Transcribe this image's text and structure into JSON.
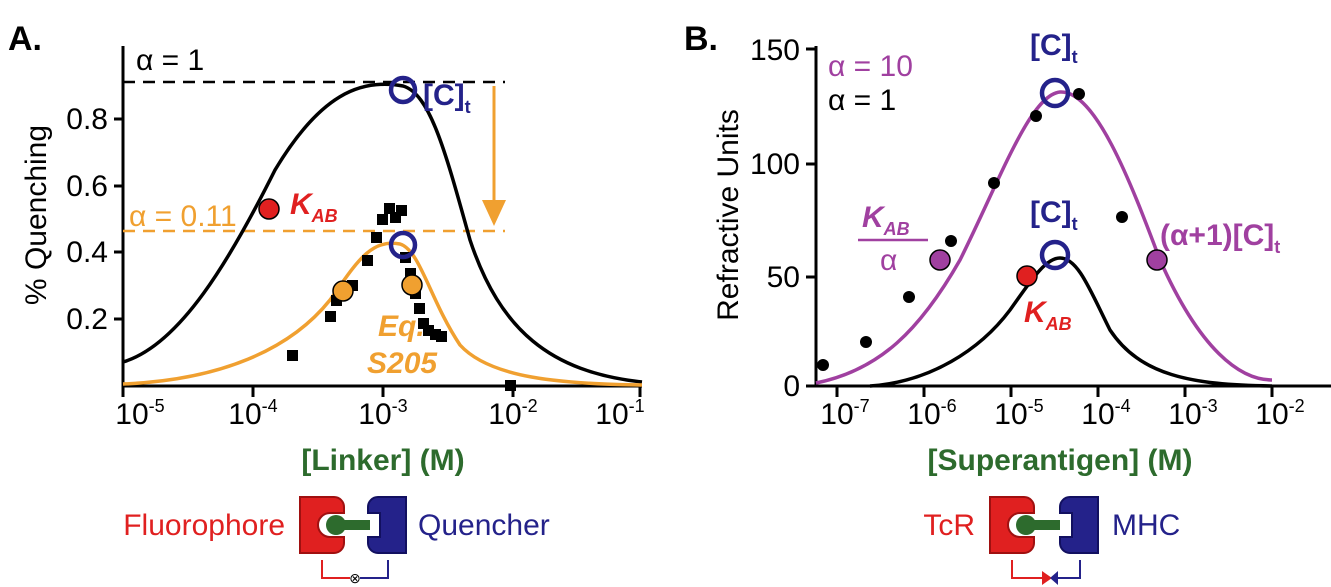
{
  "colors": {
    "black": "#000000",
    "orange": "#f0a030",
    "navy": "#24228a",
    "red": "#e02020",
    "purple": "#a040a0",
    "green": "#2d6b2d"
  },
  "panelA": {
    "label": "A.",
    "alpha1": "α = 1",
    "alpha011": "α = 0.11",
    "kab": "K",
    "kab_sub": "AB",
    "ct": "[C]",
    "ct_sub": "t",
    "eq1": "Eq.",
    "eq2": "S205",
    "ylabel": "% Quenching",
    "xlabel": "[Linker] (M)",
    "legend_left": "Fluorophore",
    "legend_right": "Quencher"
  },
  "panelB": {
    "label": "B.",
    "alpha10": "α = 10",
    "alpha1": "α = 1",
    "ct_top": "[C]",
    "ct_top_sub": "t",
    "ct_mid": "[C]",
    "ct_mid_sub": "t",
    "kab_over": "K",
    "kab_over_sub": "AB",
    "alpha_den": "α",
    "kab": "K",
    "kab_sub": "AB",
    "alpha_ct": "(α+1)[C]",
    "alpha_ct_sub": "t",
    "ylabel": "Refractive Units",
    "xlabel": "[Superantigen] (M)",
    "legend_left": "TcR",
    "legend_right": "MHC"
  },
  "chart_data": [
    {
      "type": "line",
      "panel": "A",
      "xlabel": "[Linker] (M)",
      "ylabel": "% Quenching",
      "xscale": "log",
      "xlim": [
        1e-05,
        0.1
      ],
      "ylim": [
        0,
        0.9
      ],
      "x_ticks": [
        "10-5",
        "10-4",
        "10-3",
        "10-2",
        "10-1"
      ],
      "y_ticks": [
        "0.2",
        "0.4",
        "0.6",
        "0.8"
      ],
      "series": [
        {
          "type": "scatter",
          "marker": "square",
          "points": [
            [
              0.0002,
              0.09
            ],
            [
              0.00042,
              0.21
            ],
            [
              0.00047,
              0.27
            ],
            [
              0.00058,
              0.3
            ],
            [
              0.00075,
              0.36
            ],
            [
              0.0009,
              0.42
            ],
            [
              0.001,
              0.47
            ],
            [
              0.0011,
              0.5
            ],
            [
              0.0012,
              0.49
            ],
            [
              0.0013,
              0.52
            ],
            [
              0.0015,
              0.4
            ],
            [
              0.0016,
              0.36
            ],
            [
              0.0018,
              0.31
            ],
            [
              0.0019,
              0.26
            ],
            [
              0.002,
              0.22
            ],
            [
              0.0022,
              0.19
            ],
            [
              0.0025,
              0.17
            ],
            [
              0.0028,
              0.16
            ],
            [
              0.0095,
              0.0
            ]
          ]
        }
      ],
      "reference_lines": [
        {
          "y": 0.9,
          "label": "α = 1"
        },
        {
          "y": 0.46,
          "label": "α = 0.11"
        }
      ],
      "annotations": [
        {
          "label": "KAB",
          "x": 0.00013,
          "y": 0.52
        },
        {
          "label": "[C]t",
          "x": 0.0014,
          "y": 0.88
        },
        {
          "label": "Eq. S205"
        }
      ]
    },
    {
      "type": "line",
      "panel": "B",
      "xlabel": "[Superantigen] (M)",
      "ylabel": "Refractive Units",
      "xscale": "log",
      "xlim": [
        5e-08,
        0.02
      ],
      "ylim": [
        0,
        150
      ],
      "x_ticks": [
        "10-7",
        "10-6",
        "10-5",
        "10-4",
        "10-3",
        "10-2"
      ],
      "y_ticks": [
        "0",
        "50",
        "100",
        "150"
      ],
      "series": [
        {
          "type": "scatter",
          "marker": "circle",
          "points": [
            [
              5.5e-08,
              10
            ],
            [
              1.6e-07,
              20
            ],
            [
              5.5e-07,
              40
            ],
            [
              1.7e-06,
              65
            ],
            [
              5.3e-06,
              90
            ],
            [
              1.6e-05,
              120
            ],
            [
              5e-05,
              130
            ],
            [
              0.00017,
              75
            ]
          ]
        }
      ],
      "annotations": [
        {
          "label": "α = 10"
        },
        {
          "label": "α = 1"
        },
        {
          "label": "[C]t",
          "x": 3e-05,
          "y": 130
        },
        {
          "label": "[C]t",
          "x": 3e-05,
          "y": 58
        },
        {
          "label": "KAB",
          "x": 1.5e-05,
          "y": 50
        },
        {
          "label": "KAB/α",
          "x": 1.4e-06,
          "y": 56
        },
        {
          "label": "(α+1)[C]t",
          "x": 0.00047,
          "y": 56
        }
      ]
    }
  ]
}
